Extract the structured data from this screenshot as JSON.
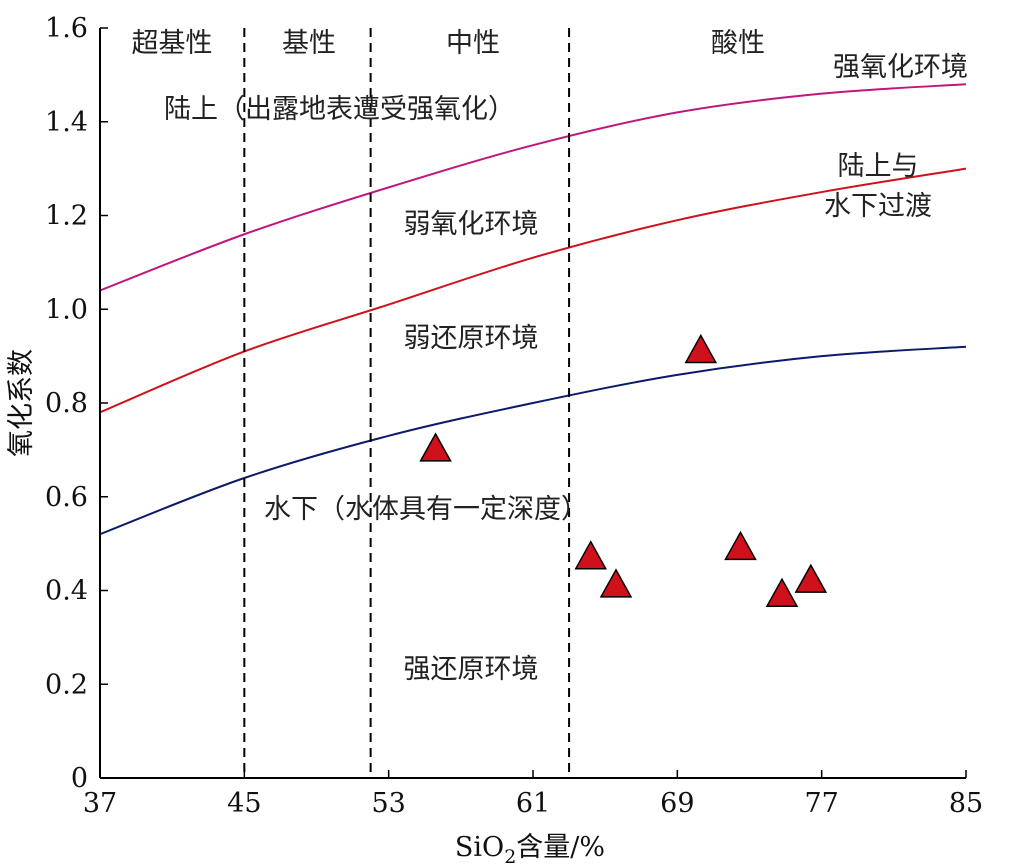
{
  "chart_data": {
    "type": "scatter",
    "xlabel_parts": {
      "pre": "SiO",
      "sub": "2",
      "post": "含量/%"
    },
    "ylabel": "氧化系数",
    "xlim": [
      37,
      85
    ],
    "ylim": [
      0,
      1.6
    ],
    "xticks": [
      37,
      45,
      53,
      61,
      69,
      77,
      85
    ],
    "xtick_labels": [
      "37",
      "45",
      "53",
      "61",
      "69",
      "77",
      "85"
    ],
    "yticks": [
      0,
      0.2,
      0.4,
      0.6,
      0.8,
      1.0,
      1.2,
      1.4,
      1.6
    ],
    "ytick_labels": [
      "0",
      "0.2",
      "0.4",
      "0.6",
      "0.8",
      "1.0",
      "1.2",
      "1.4",
      "1.6"
    ],
    "grid": false,
    "rock_type_boundaries": [
      45,
      52,
      63
    ],
    "rock_types": [
      "超基性",
      "基性",
      "中性",
      "酸性"
    ],
    "boundary_curves": [
      {
        "label": "陆上（出露地表遭受强氧化）",
        "color": "#c0177c",
        "x": [
          37,
          45,
          53,
          61,
          69,
          77,
          85
        ],
        "y": [
          1.04,
          1.16,
          1.26,
          1.35,
          1.42,
          1.46,
          1.48
        ]
      },
      {
        "label": "水下（水体具有一定深度）",
        "color": "#d0101a",
        "x": [
          37,
          45,
          53,
          61,
          69,
          77,
          85
        ],
        "y": [
          0.78,
          0.91,
          1.01,
          1.11,
          1.19,
          1.25,
          1.3
        ]
      },
      {
        "label": "",
        "color": "#0c1a6b",
        "x": [
          37,
          45,
          53,
          61,
          69,
          77,
          85
        ],
        "y": [
          0.52,
          0.64,
          0.73,
          0.8,
          0.86,
          0.9,
          0.92
        ]
      }
    ],
    "zone_labels": [
      "强氧化环境",
      "陆上与",
      "水下过渡",
      "弱氧化环境",
      "弱还原环境",
      "强还原环境"
    ],
    "series": [
      {
        "marker": "triangle",
        "color": "#d0101a",
        "x": [
          55.6,
          64.2,
          65.6,
          70.3,
          72.5,
          74.8,
          76.4
        ],
        "y": [
          0.7,
          0.47,
          0.41,
          0.91,
          0.49,
          0.39,
          0.42
        ]
      }
    ]
  }
}
